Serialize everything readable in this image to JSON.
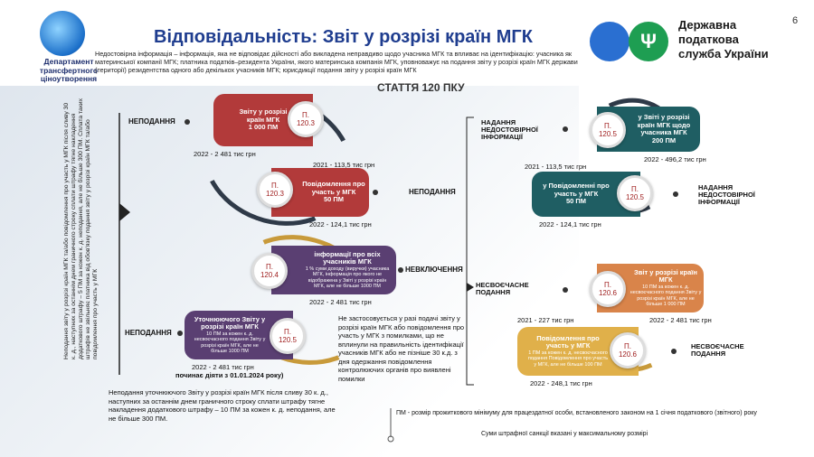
{
  "header": {
    "title": "Відповідальність: Звіт у розрізі країн МГК",
    "page_number": "6",
    "subtitle": "Недостовірна інформація – інформація, яка не відповідає дійсності або викладена неправдиво щодо учасника МГК та впливає на ідентифікацію: учасника як материнської компанії МГК; платника податків–резидента України, якого материнська компанія МГК, уповноважує на подання звіту у розрізі країн МГК держави (території) резидентства одного або декількох учасників МГК; юрисдикції подання звіту у розрізі країн МГК"
  },
  "dept": {
    "name": "Департамент трансфертного ціноутворення"
  },
  "dps": {
    "line1": "Державна",
    "line2": "податкова",
    "line3": "служба України",
    "trident": "Ψ"
  },
  "article": "СТАТТЯ 120 ПКУ",
  "vertical_note": "Неподання звіту у розрізі країн МГК та/або повідомлення про участь у МГК після сливу 30 к. д., наступних за останнім днем граничного строку сплати штрафу тягне накладення додаткового штрафу – 5 ПМ за кожен к. д. неподання, але не більше 300 ПМ. Сплата таких штрафів не звільняє платника від обов'язку подання звіту у розрізі країн МГК та/або повідомлення про участь у МГК",
  "left": {
    "b1": {
      "label": "НЕПОДАННЯ",
      "box": "Звіту у розрізі країн МГК",
      "amount": "1 000 ПМ",
      "p": "П.",
      "pnum": "120.3",
      "y2022": "2022 - 2 481 тис грн",
      "y2021": "2021 - 113,5 тис грн"
    },
    "b2": {
      "label": "НЕПОДАННЯ",
      "box": "Повідомлення про участь у МГК",
      "amount": "50 ПМ",
      "p": "П.",
      "pnum": "120.3",
      "y2022": "2022 - 124,1 тис грн"
    },
    "b3": {
      "label": "НЕВКЛЮЧЕННЯ",
      "box_title": "інформації про всіх учасників МГК",
      "box_text": "1 % суми доходу (виручки) учасника МГК, інформація про якого не відображена у Звіті у розрізі країн МГК, але не більше 1000 ПМ",
      "p": "П.",
      "pnum": "120.4",
      "y2022": "2022 - 2 481 тис грн"
    },
    "b4": {
      "label": "НЕПОДАННЯ",
      "box_title": "Уточнюючого Звіту у розрізі країн МГК",
      "box_text": "10 ПМ за кожен к. д. несвоєчасного подання Звіту у розрізі країн МГК, але не більше 1000 ПМ",
      "p": "П.",
      "pnum": "120.5",
      "y2022": "2022 - 2 481 тис грн",
      "y_note": "починає діяти з 01.01.2024 року)"
    },
    "mid_note": "Не застосовується у разі подачі звіту у розрізі країн МГК або повідомлення про участь у МГК з помилками, що не вплинули на правильність ідентифікації учасників МГК або не пізніше 30 к.д. з дня одержання повідомлення контролюючих органів про виявлені помилки",
    "bottom_note": "Неподання уточнюючого Звіту у розрізі країн МГК після сливу 30 к. д., наступних за останнім днем граничного строку сплати штрафу тягне накладення додаткового штрафу – 10 ПМ за кожен к. д. неподання, але не більше 300 ПМ."
  },
  "right": {
    "r1": {
      "label": "НАДАННЯ НЕДОСТОВІРНОЇ ІНФОРМАЦІЇ",
      "box": "у Звіті у розрізі країн МГК щодо учасника МГК",
      "amount": "200 ПМ",
      "p": "П.",
      "pnum": "120.5",
      "y2022": "2022 - 496,2 тис грн",
      "y2021": "2021 - 113,5 тис грн"
    },
    "r2": {
      "label": "НАДАННЯ НЕДОСТОВІРНОЇ ІНФОРМАЦІЇ",
      "box": "у Повідомленні про участь у МГК",
      "amount": "50 ПМ",
      "p": "П.",
      "pnum": "120.5",
      "y2022": "2022 - 124,1 тис грн"
    },
    "r3": {
      "label": "НЕСВОЄЧАСНЕ ПОДАННЯ",
      "box_title": "Звіт у розрізі країн МГК",
      "box_text": "10 ПМ за кожен к. д. несвоєчасного подання Звіту у розрізі країн МГК, але не більше 1 000 ПМ",
      "p": "П.",
      "pnum": "120.6",
      "y2021": "2021 - 227 тис грн",
      "y2022": "2022 - 2 481 тис грн"
    },
    "r4": {
      "label": "НЕСВОЄЧАСНЕ ПОДАННЯ",
      "box_title": "Повідомлення про участь у МГК",
      "box_text": "1 ПМ за кожен к. д. несвоєчасного подання Повідомлення про участь у МГК, але не більше 100 ПМ",
      "p": "П.",
      "pnum": "120.6",
      "y2022": "2022 - 248,1 тис грн"
    }
  },
  "footer": {
    "pm_note": "ПМ - розмір прожиткового мінімуму для працездатної особи, встановленого законом на 1 січня податкового (звітного) року",
    "sum_note": "Суми штрафної санкції вказані у максимальному розмірі"
  },
  "colors": {
    "red": "#b23a3a",
    "purple": "#5a3f72",
    "teal": "#1f5e63",
    "orange": "#d9844a",
    "gold": "#e0b04a",
    "title": "#1f3d8f"
  }
}
